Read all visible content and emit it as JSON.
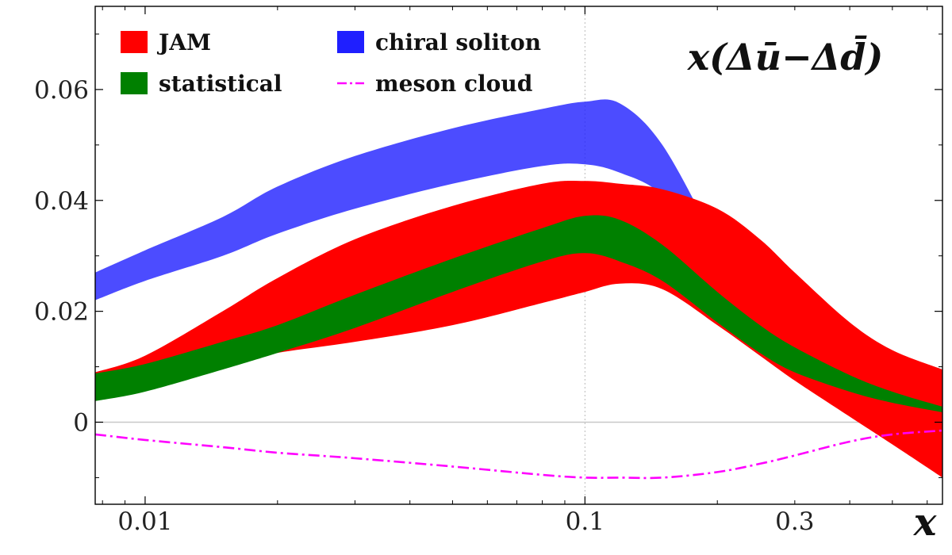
{
  "chart_data": {
    "type": "area",
    "title": "x(Δū−Δd̄)",
    "xlabel": "x",
    "ylabel": "",
    "xscale": "log",
    "xlim": [
      0.0077,
      0.65
    ],
    "ylim": [
      -0.0148,
      0.075
    ],
    "grid": false,
    "legend_placement": "top-left (two columns)",
    "x_ticks": [
      {
        "value": 0.01,
        "label": "0.01"
      },
      {
        "value": 0.1,
        "label": "0.1"
      },
      {
        "value": 0.3,
        "label": "0.3"
      }
    ],
    "y_ticks": [
      {
        "value": 0.0,
        "label": "0"
      },
      {
        "value": 0.02,
        "label": "0.02"
      },
      {
        "value": 0.04,
        "label": "0.04"
      },
      {
        "value": 0.06,
        "label": "0.06"
      }
    ],
    "reference_lines": {
      "y_zero": true,
      "x_dotted": 0.1
    },
    "series": [
      {
        "name": "chiral soliton",
        "kind": "band",
        "color": "#1f1fff",
        "opacity": 0.8,
        "x": [
          0.0077,
          0.01,
          0.015,
          0.02,
          0.03,
          0.05,
          0.08,
          0.1,
          0.12,
          0.15,
          0.2,
          0.25,
          0.3,
          0.4,
          0.5,
          0.65
        ],
        "lower": [
          0.022,
          0.0255,
          0.03,
          0.034,
          0.0385,
          0.043,
          0.0462,
          0.0465,
          0.045,
          0.041,
          0.03,
          0.017,
          0.009,
          0.003,
          0.0012,
          0.0006
        ],
        "upper": [
          0.027,
          0.031,
          0.037,
          0.0425,
          0.048,
          0.053,
          0.0565,
          0.0578,
          0.0575,
          0.05,
          0.032,
          0.018,
          0.01,
          0.0035,
          0.0015,
          0.0008
        ]
      },
      {
        "name": "JAM",
        "kind": "band",
        "color": "#ff0000",
        "opacity": 1.0,
        "x": [
          0.0077,
          0.01,
          0.015,
          0.02,
          0.03,
          0.05,
          0.08,
          0.1,
          0.12,
          0.15,
          0.2,
          0.25,
          0.3,
          0.4,
          0.5,
          0.65
        ],
        "lower": [
          0.0055,
          0.0075,
          0.0105,
          0.0125,
          0.0145,
          0.0175,
          0.0215,
          0.0235,
          0.025,
          0.024,
          0.0175,
          0.012,
          0.0075,
          0.001,
          -0.004,
          -0.01
        ],
        "upper": [
          0.009,
          0.012,
          0.02,
          0.026,
          0.033,
          0.039,
          0.043,
          0.0435,
          0.043,
          0.042,
          0.0385,
          0.033,
          0.027,
          0.018,
          0.013,
          0.0095
        ]
      },
      {
        "name": "statistical",
        "kind": "band",
        "color": "#008000",
        "opacity": 1.0,
        "x": [
          0.0077,
          0.01,
          0.015,
          0.02,
          0.03,
          0.05,
          0.08,
          0.1,
          0.12,
          0.15,
          0.2,
          0.25,
          0.3,
          0.4,
          0.5,
          0.65
        ],
        "lower": [
          0.0038,
          0.0055,
          0.0095,
          0.0125,
          0.017,
          0.0235,
          0.029,
          0.0305,
          0.029,
          0.0255,
          0.018,
          0.0125,
          0.009,
          0.0055,
          0.0035,
          0.0018
        ],
        "upper": [
          0.0088,
          0.0105,
          0.0145,
          0.0175,
          0.023,
          0.0295,
          0.035,
          0.0372,
          0.0365,
          0.032,
          0.0235,
          0.0175,
          0.0135,
          0.0085,
          0.0055,
          0.0028
        ]
      },
      {
        "name": "meson cloud",
        "kind": "line",
        "style": "dash-dot",
        "color": "#ff00ff",
        "x": [
          0.0077,
          0.01,
          0.015,
          0.02,
          0.03,
          0.05,
          0.08,
          0.1,
          0.12,
          0.15,
          0.2,
          0.25,
          0.3,
          0.4,
          0.5,
          0.65
        ],
        "values": [
          -0.0022,
          -0.0032,
          -0.0045,
          -0.0055,
          -0.0065,
          -0.008,
          -0.0095,
          -0.01,
          -0.01,
          -0.01,
          -0.009,
          -0.0075,
          -0.006,
          -0.0035,
          -0.0022,
          -0.0015
        ]
      }
    ],
    "legend": [
      {
        "label": "JAM",
        "color": "#ff0000",
        "marker": "patch"
      },
      {
        "label": "statistical",
        "color": "#008000",
        "marker": "patch"
      },
      {
        "label": "chiral soliton",
        "color": "#1f1fff",
        "marker": "patch"
      },
      {
        "label": "meson cloud",
        "color": "#ff00ff",
        "marker": "dash-dot"
      }
    ]
  }
}
